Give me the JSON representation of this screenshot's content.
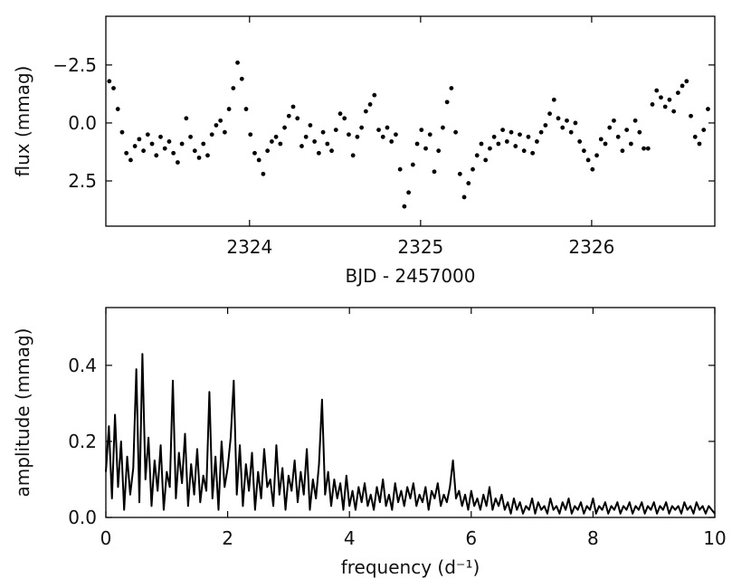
{
  "chart_data": [
    {
      "type": "scatter",
      "xlabel": "BJD - 2457000",
      "ylabel": "flux (mmag)",
      "xlim": [
        2323.16,
        2326.72
      ],
      "ylim": [
        -4.6,
        4.45
      ],
      "invert_y": true,
      "xticks": [
        2324,
        2325,
        2326
      ],
      "yticks": [
        {
          "value": -2.5,
          "label": "−2.5"
        },
        {
          "value": 0,
          "label": "0.0"
        },
        2.5
      ],
      "color": "#000000",
      "x": [
        2323.18,
        2323.205,
        2323.23,
        2323.255,
        2323.28,
        2323.305,
        2323.33,
        2323.355,
        2323.38,
        2323.405,
        2323.43,
        2323.455,
        2323.48,
        2323.505,
        2323.53,
        2323.555,
        2323.58,
        2323.605,
        2323.63,
        2323.655,
        2323.68,
        2323.705,
        2323.73,
        2323.755,
        2323.78,
        2323.805,
        2323.83,
        2323.855,
        2323.88,
        2323.905,
        2323.93,
        2323.955,
        2323.98,
        2324.005,
        2324.03,
        2324.055,
        2324.08,
        2324.105,
        2324.13,
        2324.155,
        2324.18,
        2324.205,
        2324.23,
        2324.255,
        2324.28,
        2324.305,
        2324.33,
        2324.355,
        2324.38,
        2324.405,
        2324.43,
        2324.455,
        2324.48,
        2324.505,
        2324.53,
        2324.555,
        2324.58,
        2324.605,
        2324.63,
        2324.655,
        2324.68,
        2324.705,
        2324.73,
        2324.755,
        2324.78,
        2324.805,
        2324.83,
        2324.855,
        2324.88,
        2324.905,
        2324.93,
        2324.955,
        2324.98,
        2325.005,
        2325.03,
        2325.055,
        2325.08,
        2325.105,
        2325.13,
        2325.155,
        2325.18,
        2325.205,
        2325.23,
        2325.255,
        2325.28,
        2325.305,
        2325.33,
        2325.355,
        2325.38,
        2325.405,
        2325.43,
        2325.455,
        2325.48,
        2325.505,
        2325.53,
        2325.555,
        2325.58,
        2325.605,
        2325.63,
        2325.655,
        2325.68,
        2325.705,
        2325.73,
        2325.755,
        2325.78,
        2325.805,
        2325.83,
        2325.855,
        2325.88,
        2325.905,
        2325.93,
        2325.955,
        2325.98,
        2326.005,
        2326.03,
        2326.055,
        2326.08,
        2326.105,
        2326.13,
        2326.155,
        2326.18,
        2326.205,
        2326.23,
        2326.255,
        2326.28,
        2326.305,
        2326.33,
        2326.355,
        2326.38,
        2326.405,
        2326.43,
        2326.455,
        2326.48,
        2326.505,
        2326.53,
        2326.555,
        2326.58,
        2326.605,
        2326.63,
        2326.655,
        2326.68
      ],
      "values": [
        -1.8,
        -1.5,
        -0.6,
        0.4,
        1.3,
        1.6,
        1.0,
        0.7,
        1.2,
        0.5,
        0.9,
        1.4,
        0.6,
        1.1,
        0.8,
        1.3,
        1.7,
        0.9,
        -0.2,
        0.6,
        1.2,
        1.5,
        0.9,
        1.4,
        0.5,
        0.1,
        -0.1,
        0.4,
        -0.6,
        -1.5,
        -2.6,
        -1.9,
        -0.6,
        0.5,
        1.3,
        1.6,
        2.2,
        1.2,
        0.8,
        0.6,
        0.9,
        0.2,
        -0.3,
        -0.7,
        -0.2,
        1.0,
        0.6,
        0.1,
        0.8,
        1.3,
        0.4,
        0.9,
        1.2,
        0.3,
        -0.4,
        -0.2,
        0.5,
        1.4,
        0.6,
        0.2,
        -0.5,
        -0.8,
        -1.2,
        0.3,
        0.6,
        0.2,
        0.8,
        0.5,
        2.0,
        3.6,
        3.0,
        1.8,
        0.9,
        0.3,
        1.1,
        0.5,
        2.1,
        1.2,
        0.2,
        -0.9,
        -1.5,
        0.4,
        2.2,
        3.2,
        2.6,
        2.0,
        1.4,
        0.9,
        1.6,
        1.1,
        0.6,
        0.9,
        0.3,
        0.8,
        0.4,
        1.0,
        0.5,
        1.2,
        0.6,
        1.3,
        0.8,
        0.4,
        0.1,
        -0.4,
        -1.0,
        -0.2,
        0.2,
        -0.1,
        0.4,
        0.0,
        0.8,
        1.2,
        1.6,
        2.0,
        1.4,
        0.7,
        0.9,
        0.2,
        -0.1,
        0.6,
        1.2,
        0.3,
        0.9,
        -0.1,
        0.4,
        1.1,
        1.1,
        -0.8,
        -1.4,
        -1.1,
        -0.7,
        -1.0,
        -0.5,
        -1.3,
        -1.6,
        -1.8,
        -0.3,
        0.6,
        0.9,
        0.3,
        -0.6
      ]
    },
    {
      "type": "line",
      "xlabel": "frequency (d⁻¹)",
      "ylabel": "amplitude (mmag)",
      "xlim": [
        0,
        10
      ],
      "ylim": [
        0,
        0.552
      ],
      "xticks": [
        0,
        2,
        4,
        6,
        8,
        10
      ],
      "yticks": [
        {
          "value": 0,
          "label": "0.0"
        },
        0.2,
        0.4
      ],
      "color": "#000000",
      "x": [
        0,
        0.05,
        0.1,
        0.15,
        0.2,
        0.25,
        0.3,
        0.35,
        0.4,
        0.45,
        0.5,
        0.55,
        0.6,
        0.65,
        0.7,
        0.75,
        0.8,
        0.85,
        0.9,
        0.95,
        1,
        1.05,
        1.1,
        1.15,
        1.2,
        1.25,
        1.3,
        1.35,
        1.4,
        1.45,
        1.5,
        1.55,
        1.6,
        1.65,
        1.7,
        1.75,
        1.8,
        1.85,
        1.9,
        1.95,
        2,
        2.05,
        2.1,
        2.15,
        2.2,
        2.25,
        2.3,
        2.35,
        2.4,
        2.45,
        2.5,
        2.55,
        2.6,
        2.65,
        2.7,
        2.75,
        2.8,
        2.85,
        2.9,
        2.95,
        3,
        3.05,
        3.1,
        3.15,
        3.2,
        3.25,
        3.3,
        3.35,
        3.4,
        3.45,
        3.5,
        3.55,
        3.6,
        3.65,
        3.7,
        3.75,
        3.8,
        3.85,
        3.9,
        3.95,
        4,
        4.05,
        4.1,
        4.15,
        4.2,
        4.25,
        4.3,
        4.35,
        4.4,
        4.45,
        4.5,
        4.55,
        4.6,
        4.65,
        4.7,
        4.75,
        4.8,
        4.85,
        4.9,
        4.95,
        5,
        5.05,
        5.1,
        5.15,
        5.2,
        5.25,
        5.3,
        5.35,
        5.4,
        5.45,
        5.5,
        5.55,
        5.6,
        5.65,
        5.7,
        5.75,
        5.8,
        5.85,
        5.9,
        5.95,
        6,
        6.05,
        6.1,
        6.15,
        6.2,
        6.25,
        6.3,
        6.35,
        6.4,
        6.45,
        6.5,
        6.55,
        6.6,
        6.65,
        6.7,
        6.75,
        6.8,
        6.85,
        6.9,
        6.95,
        7,
        7.05,
        7.1,
        7.15,
        7.2,
        7.25,
        7.3,
        7.35,
        7.4,
        7.45,
        7.5,
        7.55,
        7.6,
        7.65,
        7.7,
        7.75,
        7.8,
        7.85,
        7.9,
        7.95,
        8,
        8.05,
        8.1,
        8.15,
        8.2,
        8.25,
        8.3,
        8.35,
        8.4,
        8.45,
        8.5,
        8.55,
        8.6,
        8.65,
        8.7,
        8.75,
        8.8,
        8.85,
        8.9,
        8.95,
        9,
        9.05,
        9.1,
        9.15,
        9.2,
        9.25,
        9.3,
        9.35,
        9.4,
        9.45,
        9.5,
        9.55,
        9.6,
        9.65,
        9.7,
        9.75,
        9.8,
        9.85,
        9.9,
        9.95,
        10
      ],
      "values": [
        0.12,
        0.24,
        0.05,
        0.27,
        0.08,
        0.2,
        0.02,
        0.16,
        0.06,
        0.13,
        0.39,
        0.04,
        0.43,
        0.1,
        0.21,
        0.03,
        0.15,
        0.07,
        0.19,
        0.02,
        0.12,
        0.08,
        0.36,
        0.05,
        0.17,
        0.09,
        0.22,
        0.03,
        0.14,
        0.06,
        0.18,
        0.04,
        0.11,
        0.07,
        0.33,
        0.05,
        0.16,
        0.02,
        0.2,
        0.08,
        0.13,
        0.21,
        0.36,
        0.06,
        0.19,
        0.03,
        0.14,
        0.07,
        0.17,
        0.02,
        0.12,
        0.05,
        0.18,
        0.08,
        0.1,
        0.03,
        0.19,
        0.06,
        0.13,
        0.02,
        0.11,
        0.07,
        0.15,
        0.04,
        0.12,
        0.06,
        0.18,
        0.02,
        0.1,
        0.05,
        0.14,
        0.31,
        0.06,
        0.12,
        0.03,
        0.1,
        0.05,
        0.09,
        0.02,
        0.11,
        0.03,
        0.07,
        0.02,
        0.08,
        0.04,
        0.09,
        0.03,
        0.06,
        0.02,
        0.08,
        0.04,
        0.1,
        0.03,
        0.06,
        0.02,
        0.09,
        0.04,
        0.07,
        0.03,
        0.08,
        0.05,
        0.09,
        0.03,
        0.06,
        0.04,
        0.08,
        0.02,
        0.07,
        0.05,
        0.09,
        0.03,
        0.06,
        0.04,
        0.08,
        0.15,
        0.05,
        0.07,
        0.03,
        0.06,
        0.02,
        0.07,
        0.03,
        0.05,
        0.02,
        0.06,
        0.03,
        0.08,
        0.02,
        0.05,
        0.03,
        0.06,
        0.02,
        0.04,
        0.01,
        0.05,
        0.02,
        0.04,
        0.01,
        0.03,
        0.02,
        0.05,
        0.01,
        0.04,
        0.02,
        0.03,
        0.01,
        0.05,
        0.02,
        0.03,
        0.01,
        0.04,
        0.02,
        0.05,
        0.01,
        0.03,
        0.02,
        0.04,
        0.01,
        0.03,
        0.02,
        0.05,
        0.01,
        0.03,
        0.02,
        0.04,
        0.01,
        0.03,
        0.02,
        0.04,
        0.01,
        0.03,
        0.02,
        0.04,
        0.01,
        0.03,
        0.02,
        0.04,
        0.01,
        0.03,
        0.02,
        0.04,
        0.01,
        0.03,
        0.02,
        0.04,
        0.01,
        0.03,
        0.02,
        0.03,
        0.01,
        0.04,
        0.02,
        0.03,
        0.01,
        0.04,
        0.02,
        0.03,
        0.01,
        0.03,
        0.02,
        0.01
      ]
    }
  ]
}
